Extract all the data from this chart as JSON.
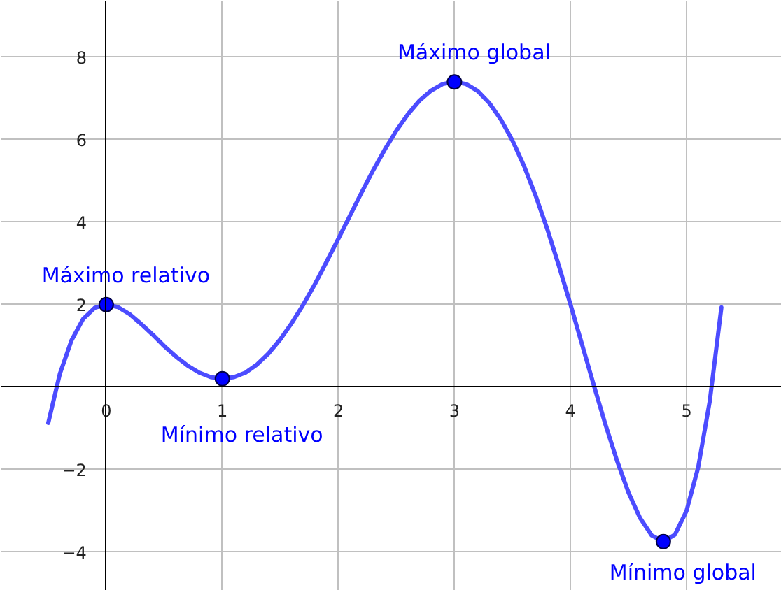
{
  "chart_data": {
    "type": "line",
    "xlim": [
      -0.91,
      5.82
    ],
    "ylim": [
      -4.94,
      9.37
    ],
    "xticks": [
      0,
      1,
      2,
      3,
      4,
      5
    ],
    "yticks": [
      -4,
      -2,
      2,
      4,
      6,
      8
    ],
    "grid": true,
    "x": [
      -0.5,
      -0.4,
      -0.3,
      -0.2,
      -0.1,
      0,
      0.1,
      0.2,
      0.3,
      0.4,
      0.5,
      0.6,
      0.7,
      0.8,
      0.9,
      1.0,
      1.1,
      1.2,
      1.3,
      1.4,
      1.5,
      1.6,
      1.7,
      1.8,
      1.9,
      2.0,
      2.1,
      2.2,
      2.3,
      2.4,
      2.5,
      2.6,
      2.7,
      2.8,
      2.9,
      3.0,
      3.1,
      3.2,
      3.3,
      3.4,
      3.5,
      3.6,
      3.7,
      3.8,
      3.9,
      4.0,
      4.1,
      4.2,
      4.3,
      4.4,
      4.5,
      4.6,
      4.7,
      4.8,
      4.9,
      5.0,
      5.1,
      5.2,
      5.3
    ],
    "series": [
      {
        "color": "#4c4cff",
        "line_style": "solid",
        "values": [
          -0.87,
          0.32,
          1.13,
          1.65,
          1.92,
          2,
          1.94,
          1.77,
          1.53,
          1.27,
          0.99,
          0.74,
          0.52,
          0.35,
          0.24,
          0.2,
          0.24,
          0.35,
          0.55,
          0.82,
          1.16,
          1.56,
          2.01,
          2.51,
          3.05,
          3.6,
          4.16,
          4.72,
          5.26,
          5.76,
          6.22,
          6.62,
          6.95,
          7.19,
          7.35,
          7.4,
          7.35,
          7.18,
          6.89,
          6.49,
          5.98,
          5.36,
          4.64,
          3.83,
          2.94,
          2,
          1.03,
          0.05,
          -0.9,
          -1.78,
          -2.56,
          -3.18,
          -3.6,
          -3.75,
          -3.58,
          -3,
          -1.95,
          -0.34,
          1.93
        ]
      },
      {
        "type": "scatter",
        "color": "#0000ff",
        "marker": "circle",
        "x": [
          0,
          1,
          3,
          4.8
        ],
        "values": [
          2,
          0.2,
          7.4,
          -3.75
        ]
      }
    ],
    "annotations": [
      {
        "text": "Máximo relativo",
        "x": 0,
        "y": 2
      },
      {
        "text": "Mínimo relativo",
        "x": 1,
        "y": 0.2
      },
      {
        "text": "Máximo global",
        "x": 3,
        "y": 7.4
      },
      {
        "text": "Mínimo global",
        "x": 4.8,
        "y": -3.75
      }
    ]
  }
}
